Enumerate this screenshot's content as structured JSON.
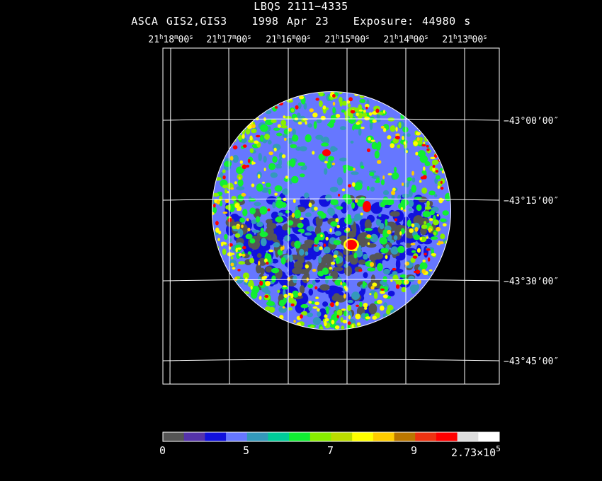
{
  "header": {
    "object_name": "LBQS 2111−4335",
    "instrument": "ASCA GIS2,GIS3",
    "date": "1998 Apr 23",
    "exposure": "Exposure: 44980 s"
  },
  "ra_axis": {
    "labels": [
      {
        "h": "21",
        "m": "18",
        "s": "00"
      },
      {
        "h": "21",
        "m": "17",
        "s": "00"
      },
      {
        "h": "21",
        "m": "16",
        "s": "00"
      },
      {
        "h": "21",
        "m": "15",
        "s": "00"
      },
      {
        "h": "21",
        "m": "14",
        "s": "00"
      },
      {
        "h": "21",
        "m": "13",
        "s": "00"
      }
    ]
  },
  "dec_axis": {
    "labels": [
      "−43°00’00″",
      "−43°15’00″",
      "−43°30’00″",
      "−43°45’00″"
    ]
  },
  "colorbar": {
    "colors": [
      "#555555",
      "#5533aa",
      "#1111dd",
      "#6677ff",
      "#3399bb",
      "#00cc99",
      "#11ee33",
      "#88ee00",
      "#bbdd00",
      "#ffff00",
      "#ffcc00",
      "#bb7700",
      "#ee3311",
      "#ff0000",
      "#dddddd",
      "#ffffff"
    ],
    "tick_labels": [
      "0",
      "5",
      "7",
      "9"
    ],
    "max_label_mantissa": "2.73×10",
    "max_label_exponent": "5"
  }
}
